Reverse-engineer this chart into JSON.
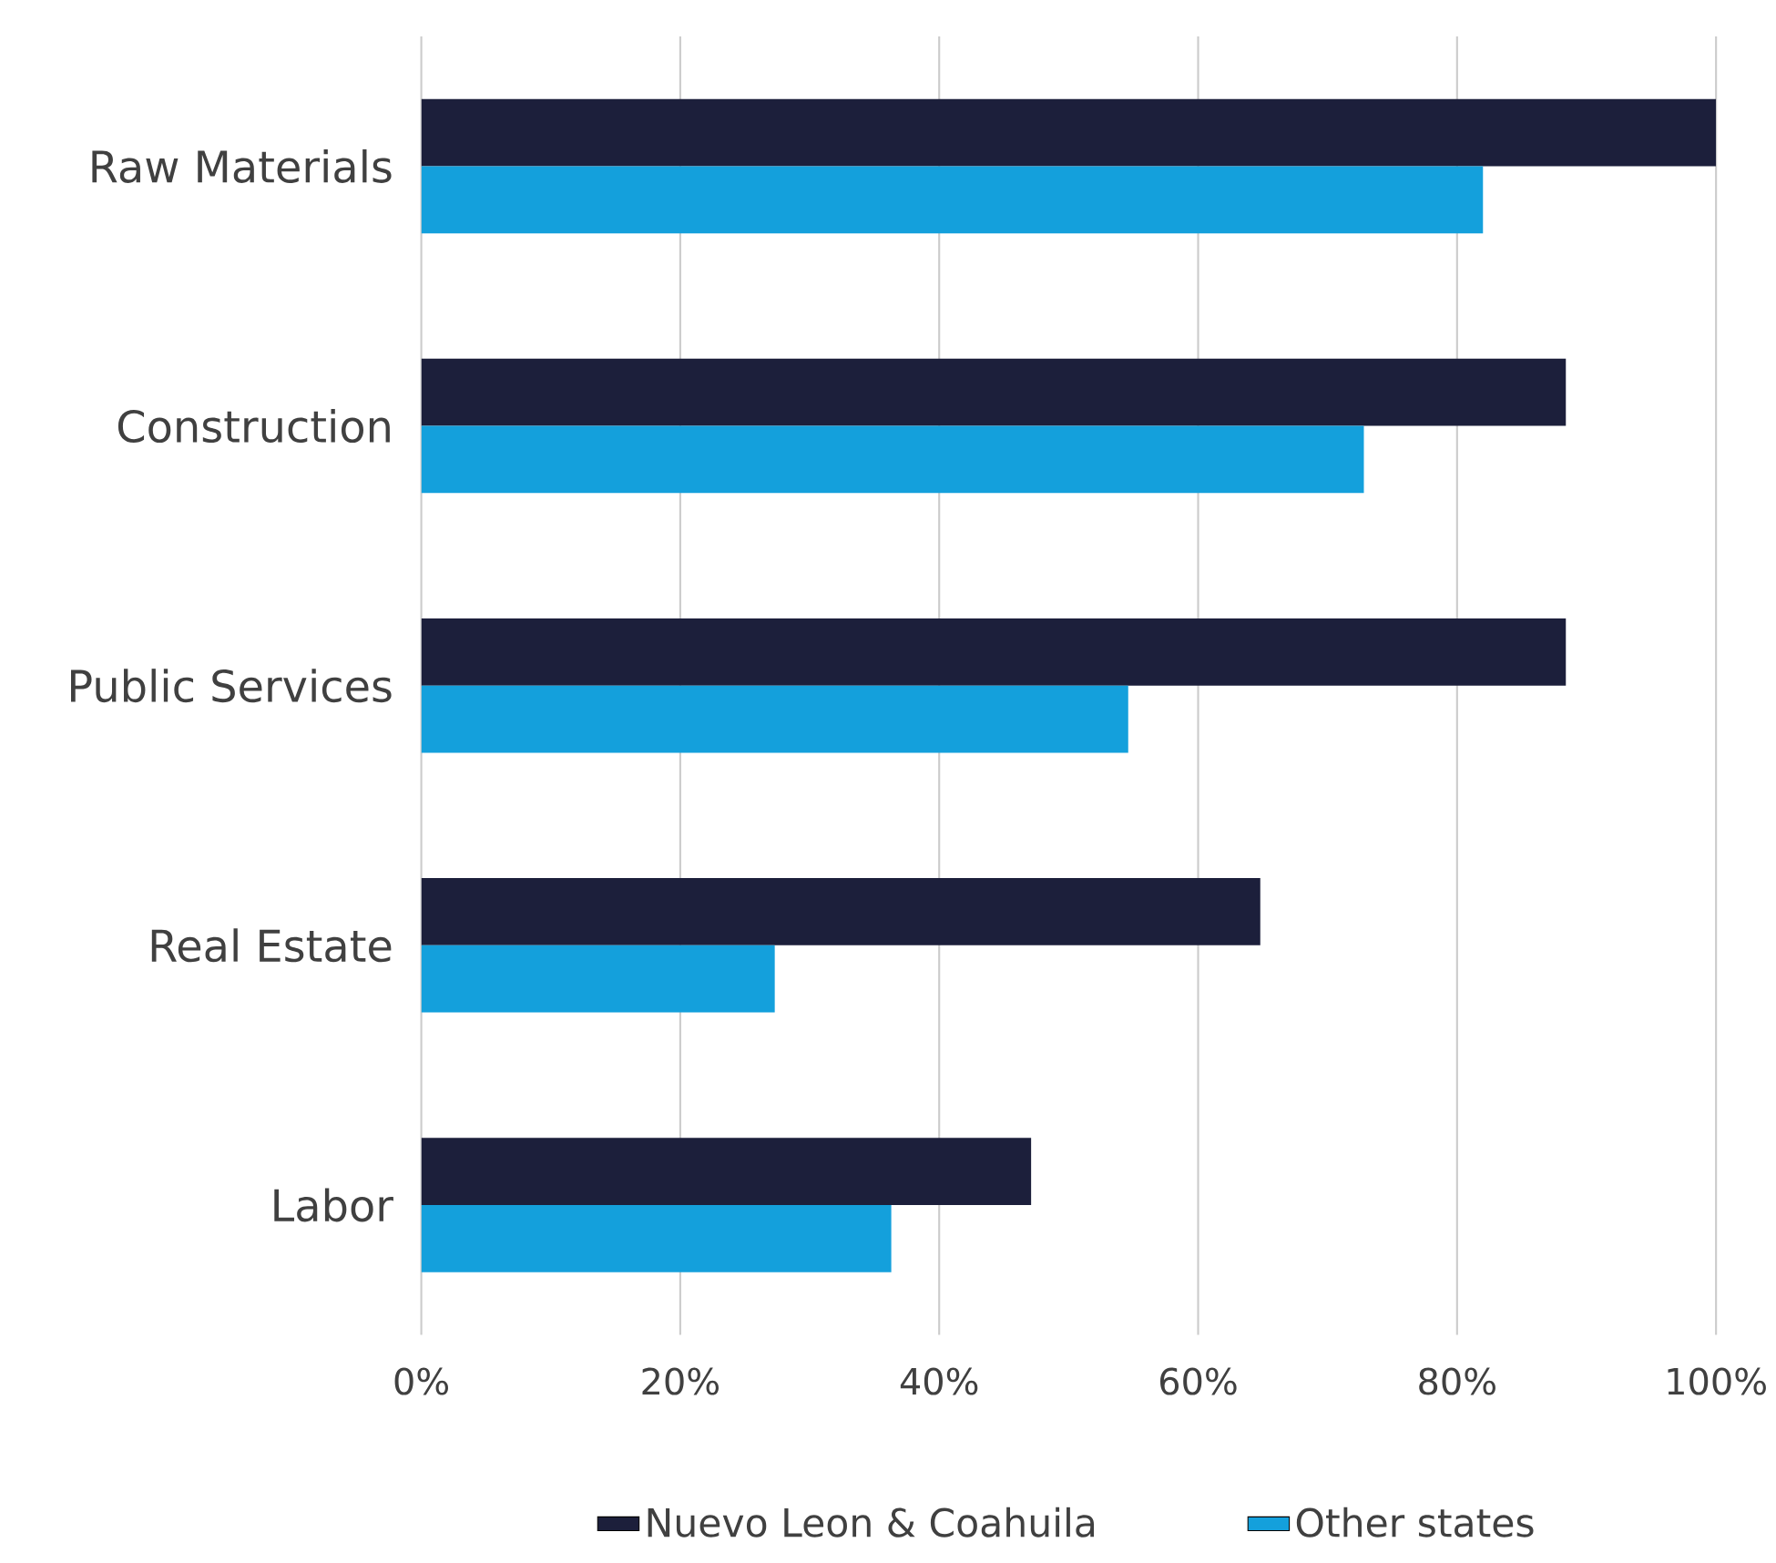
{
  "chart_data": {
    "type": "bar",
    "orientation": "horizontal",
    "categories": [
      "Raw Materials",
      "Construction",
      "Public Services",
      "Real Estate",
      "Labor"
    ],
    "series": [
      {
        "name": "Nuevo Leon & Coahuila",
        "color": "#1c1f3b",
        "values": [
          100,
          88.4,
          88.4,
          64.8,
          47.1
        ]
      },
      {
        "name": "Other states",
        "color": "#14a0dc",
        "values": [
          82,
          72.8,
          54.6,
          27.3,
          36.3
        ]
      }
    ],
    "xlim": [
      0,
      100
    ],
    "xticks": [
      {
        "value": 0,
        "label": "0%"
      },
      {
        "value": 20,
        "label": "20%"
      },
      {
        "value": 40,
        "label": "40%"
      },
      {
        "value": 60,
        "label": "60%"
      },
      {
        "value": 80,
        "label": "80%"
      },
      {
        "value": 100,
        "label": "100%"
      }
    ],
    "grid": "x",
    "legend": "bottom"
  }
}
